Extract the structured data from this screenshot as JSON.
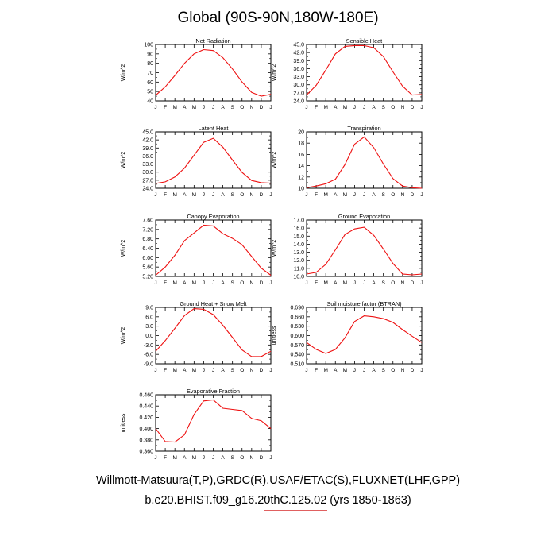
{
  "title": "Global (90S-90N,180W-180E)",
  "footer": {
    "line1": "Willmott-Matsuura(T,P),GRDC(R),USAF/ETAC(S),FLUXNET(LHF,GPP)",
    "line2": "b.e20.BHIST.f09_g16.20thC.125.02 (yrs 1850-1863)"
  },
  "series_color": "#ee1111",
  "chart_data": [
    {
      "type": "line",
      "title": "Net Radiation",
      "ylabel": "W/m^2",
      "x": [
        "J",
        "F",
        "M",
        "A",
        "M",
        "J",
        "J",
        "A",
        "S",
        "O",
        "N",
        "D",
        "J"
      ],
      "ylim": [
        40,
        100
      ],
      "yticks": [
        "40",
        "50",
        "60",
        "70",
        "80",
        "90",
        "100"
      ],
      "yticks_num": [
        40,
        50,
        60,
        70,
        80,
        90,
        100
      ],
      "values": [
        46,
        55,
        67,
        80,
        90,
        94.5,
        93.5,
        86,
        74,
        60,
        49,
        45,
        47
      ]
    },
    {
      "type": "line",
      "title": "Sensible Heat",
      "ylabel": "W/m^2",
      "x": [
        "J",
        "F",
        "M",
        "A",
        "M",
        "J",
        "J",
        "A",
        "S",
        "O",
        "N",
        "D",
        "J"
      ],
      "ylim": [
        24,
        45
      ],
      "yticks": [
        "24.0",
        "27.0",
        "30.0",
        "33.0",
        "36.0",
        "39.0",
        "42.0",
        "45.0"
      ],
      "yticks_num": [
        24,
        27,
        30,
        33,
        36,
        39,
        42,
        45
      ],
      "values": [
        26.2,
        29.8,
        35.5,
        41.5,
        44.3,
        44.6,
        44.6,
        43.8,
        40.5,
        34.8,
        29.5,
        26.2,
        26.4
      ]
    },
    {
      "type": "line",
      "title": "Latent Heat",
      "ylabel": "W/m^2",
      "x": [
        "J",
        "F",
        "M",
        "A",
        "M",
        "J",
        "J",
        "A",
        "S",
        "O",
        "N",
        "D",
        "J"
      ],
      "ylim": [
        24,
        45
      ],
      "yticks": [
        "24.0",
        "27.0",
        "30.0",
        "33.0",
        "36.0",
        "39.0",
        "42.0",
        "45.0"
      ],
      "yticks_num": [
        24,
        27,
        30,
        33,
        36,
        39,
        42,
        45
      ],
      "values": [
        25.8,
        26.4,
        28.2,
        31.5,
        36.3,
        41.1,
        42.6,
        39.3,
        34.5,
        29.9,
        26.9,
        26.1,
        25.9
      ]
    },
    {
      "type": "line",
      "title": "Transpiration",
      "ylabel": "W/m^2",
      "x": [
        "J",
        "F",
        "M",
        "A",
        "M",
        "J",
        "J",
        "A",
        "S",
        "O",
        "N",
        "D",
        "J"
      ],
      "ylim": [
        10,
        20
      ],
      "yticks": [
        "10",
        "12",
        "14",
        "16",
        "18",
        "20"
      ],
      "yticks_num": [
        10,
        12,
        14,
        16,
        18,
        20
      ],
      "values": [
        10.1,
        10.4,
        10.8,
        11.6,
        14.2,
        17.8,
        19.1,
        17.2,
        14.3,
        11.7,
        10.4,
        10.1,
        10.0
      ]
    },
    {
      "type": "line",
      "title": "Canopy Evaporation",
      "ylabel": "W/m^2",
      "x": [
        "J",
        "F",
        "M",
        "A",
        "M",
        "J",
        "J",
        "A",
        "S",
        "O",
        "N",
        "D",
        "J"
      ],
      "ylim": [
        5.2,
        7.6
      ],
      "yticks": [
        "5.20",
        "5.60",
        "6.00",
        "6.40",
        "6.80",
        "7.20",
        "7.60"
      ],
      "yticks_num": [
        5.2,
        5.6,
        6.0,
        6.4,
        6.8,
        7.2,
        7.6
      ],
      "values": [
        5.25,
        5.6,
        6.1,
        6.72,
        7.05,
        7.38,
        7.35,
        7.02,
        6.82,
        6.55,
        6.05,
        5.55,
        5.25
      ]
    },
    {
      "type": "line",
      "title": "Ground Evaporation",
      "ylabel": "W/m^2",
      "x": [
        "J",
        "F",
        "M",
        "A",
        "M",
        "J",
        "J",
        "A",
        "S",
        "O",
        "N",
        "D",
        "J"
      ],
      "ylim": [
        10,
        17
      ],
      "yticks": [
        "10.0",
        "11.0",
        "12.0",
        "13.0",
        "14.0",
        "15.0",
        "16.0",
        "17.0"
      ],
      "yticks_num": [
        10,
        11,
        12,
        13,
        14,
        15,
        16,
        17
      ],
      "values": [
        10.3,
        10.5,
        11.5,
        13.3,
        15.2,
        15.9,
        16.1,
        15.1,
        13.4,
        11.6,
        10.3,
        10.2,
        10.3
      ]
    },
    {
      "type": "line",
      "title": "Ground Heat + Snow Melt",
      "ylabel": "W/m^2",
      "x": [
        "J",
        "F",
        "M",
        "A",
        "M",
        "J",
        "J",
        "A",
        "S",
        "O",
        "N",
        "D",
        "J"
      ],
      "ylim": [
        -9,
        9
      ],
      "yticks": [
        "-9.0",
        "-6.0",
        "-3.0",
        "0.0",
        "3.0",
        "6.0",
        "9.0"
      ],
      "yticks_num": [
        -9,
        -6,
        -3,
        0,
        3,
        6,
        9
      ],
      "values": [
        -5.0,
        -1.6,
        2.3,
        6.4,
        8.6,
        8.4,
        6.7,
        3.3,
        -0.6,
        -4.6,
        -6.7,
        -6.7,
        -5.0
      ]
    },
    {
      "type": "line",
      "title": "Soil moisture factor (BTRAN)",
      "ylabel": "unitless",
      "x": [
        "J",
        "F",
        "M",
        "A",
        "M",
        "J",
        "J",
        "A",
        "S",
        "O",
        "N",
        "D",
        "J"
      ],
      "ylim": [
        0.51,
        0.69
      ],
      "yticks": [
        "0.510",
        "0.540",
        "0.570",
        "0.600",
        "0.630",
        "0.660",
        "0.690"
      ],
      "yticks_num": [
        0.51,
        0.54,
        0.57,
        0.6,
        0.63,
        0.66,
        0.69
      ],
      "values": [
        0.578,
        0.556,
        0.543,
        0.556,
        0.593,
        0.645,
        0.663,
        0.66,
        0.654,
        0.642,
        0.619,
        0.598,
        0.578
      ]
    },
    {
      "type": "line",
      "title": "Evaporative Fraction",
      "ylabel": "unitless",
      "x": [
        "J",
        "F",
        "M",
        "A",
        "M",
        "J",
        "J",
        "A",
        "S",
        "O",
        "N",
        "D",
        "J"
      ],
      "ylim": [
        0.36,
        0.46
      ],
      "yticks": [
        "0.360",
        "0.380",
        "0.400",
        "0.420",
        "0.440",
        "0.460"
      ],
      "yticks_num": [
        0.36,
        0.38,
        0.4,
        0.42,
        0.44,
        0.46
      ],
      "values": [
        0.4,
        0.377,
        0.376,
        0.389,
        0.425,
        0.449,
        0.451,
        0.436,
        0.434,
        0.432,
        0.418,
        0.414,
        0.4
      ]
    }
  ]
}
